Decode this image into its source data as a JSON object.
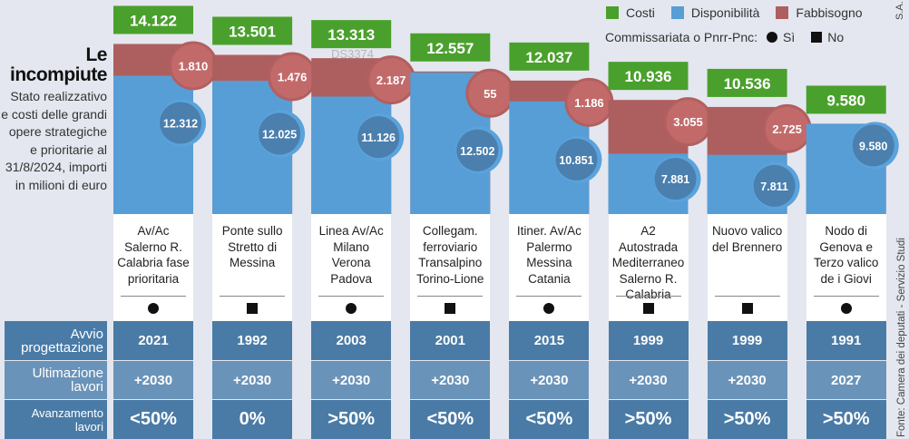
{
  "title": "Le incompiute",
  "subtitle": "Stato realizzativo e costi delle grandi opere strategiche e prioritarie al 31/8/2024, importi in milioni di euro",
  "legend": {
    "costi": "Costi",
    "disponibilita": "Disponibilità",
    "fabbisogno": "Fabbisogno",
    "commissariata": "Commissariata o Pnrr-Pnc:",
    "si": "Sì",
    "no": "No"
  },
  "colors": {
    "costi": "#4aa02c",
    "disponibilita": "#579ed6",
    "fabbisogno": "#ad5f5f",
    "fabb_circle": "#c26a6a",
    "disp_circle": "#4a7fae"
  },
  "row_headers": [
    "Avvio progettazione",
    "Ultimazione lavori",
    "Avanzamento lavori"
  ],
  "source": "Fonte: Camera dei deputati - Servizio Studi",
  "credit": "S.A.",
  "watermark": "DS3374",
  "chart_data": {
    "type": "bar",
    "stacked": true,
    "categories": [
      "Av/Ac Salerno R. Calabria fase prioritaria",
      "Ponte sullo Stretto di Messina",
      "Linea Av/Ac Milano Verona Padova",
      "Collegam. ferroviario Transalpino Torino-Lione",
      "Itiner. Av/Ac Palermo Messina Catania",
      "A2 Autostrada Mediterraneo Salerno R. Calabria",
      "Nuovo valico del Brennero",
      "Nodo di Genova e Terzo valico de i Giovi"
    ],
    "costi": [
      "14.122",
      "13.501",
      "13.313",
      "12.557",
      "12.037",
      "10.936",
      "10.536",
      "9.580"
    ],
    "disponibilita": [
      "12.312",
      "12.025",
      "11.126",
      "12.502",
      "10.851",
      "7.881",
      "7.811",
      "9.580"
    ],
    "fabbisogno": [
      "1.810",
      "1.476",
      "2.187",
      "55",
      "1.186",
      "3.055",
      "2.725",
      null
    ],
    "commissariata": [
      "si",
      "no",
      "si",
      "no",
      "si",
      "no",
      "no",
      "si"
    ],
    "avvio": [
      "2021",
      "1992",
      "2003",
      "2001",
      "2015",
      "1999",
      "1999",
      "1991"
    ],
    "ultimazione": [
      "+2030",
      "+2030",
      "+2030",
      "+2030",
      "+2030",
      "+2030",
      "+2030",
      "2027"
    ],
    "avanzamento": [
      "<50%",
      "0%",
      ">50%",
      "<50%",
      "<50%",
      ">50%",
      ">50%",
      ">50%"
    ],
    "unit": "milioni di euro"
  }
}
